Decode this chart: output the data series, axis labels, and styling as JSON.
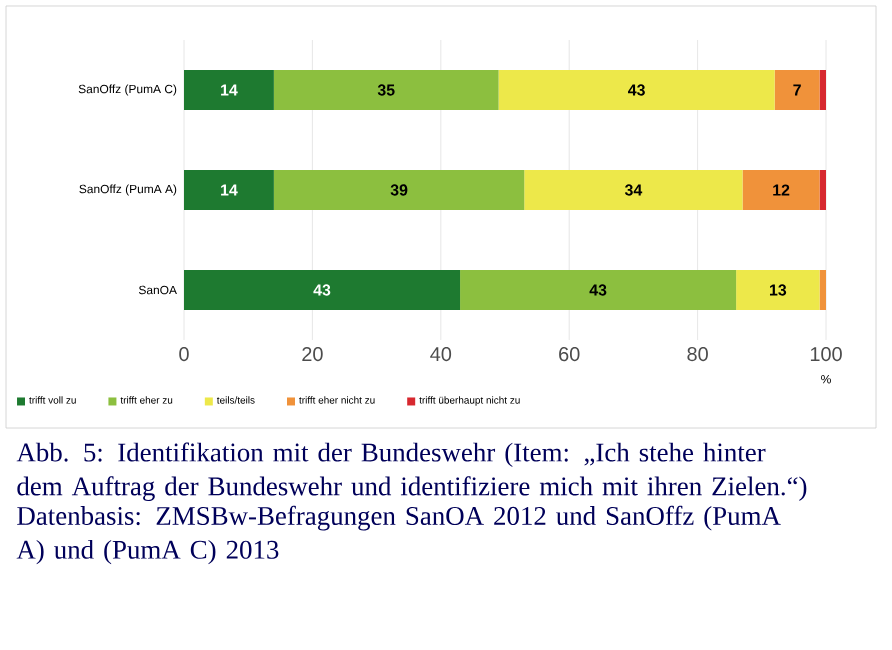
{
  "chart_data": {
    "type": "bar",
    "orientation": "horizontal",
    "stacked": true,
    "title": "Abb. 5: Identifikation mit der Bundeswehr (Item: „Ich stehe hinter dem Auftrag der Bundeswehr und identifiziere mich mit ihren Zielen.“)",
    "annotations": [
      "Datenbasis: ZMSBw-Befragungen SanOA 2012 und SanOffz (PumA A) und (PumA C) 2013"
    ],
    "categories": [
      "SanOffz (PumA C)",
      "SanOffz (PumA A)",
      "SanOA"
    ],
    "xlabel": "%",
    "xlim": [
      0,
      100
    ],
    "xticks": [
      0,
      20,
      40,
      60,
      80,
      100
    ],
    "grid": "x",
    "legend": "bottom",
    "series": [
      {
        "name": "trifft voll zu",
        "color": "#1e7a30",
        "values": [
          14,
          14,
          43
        ],
        "value_labels": [
          "14",
          "14",
          "43"
        ]
      },
      {
        "name": "trifft eher zu",
        "color": "#8cbf3f",
        "values": [
          35,
          39,
          43
        ],
        "value_labels": [
          "35",
          "39",
          "43"
        ]
      },
      {
        "name": "teils/teils",
        "color": "#ede84a",
        "values": [
          43,
          34,
          13
        ],
        "value_labels": [
          "43",
          "34",
          "13"
        ]
      },
      {
        "name": "trifft eher nicht zu",
        "color": "#f0923a",
        "values": [
          7,
          12,
          1
        ],
        "value_labels": [
          "7",
          "12",
          null
        ]
      },
      {
        "name": "trifft überhaupt nicht zu",
        "color": "#d7282f",
        "values": [
          1,
          1,
          0
        ],
        "value_labels": [
          null,
          null,
          null
        ]
      }
    ]
  }
}
